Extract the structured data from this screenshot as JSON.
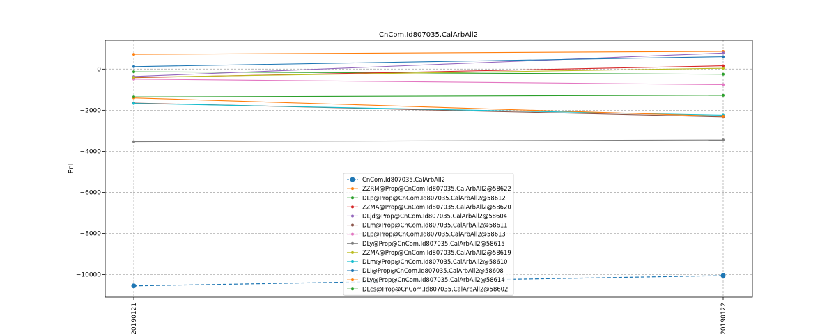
{
  "chart_data": {
    "type": "line",
    "title": "CnCom.Id807035.CalArbAll2",
    "xlabel": "",
    "ylabel": "Pnl",
    "x": [
      "20190121",
      "20190122"
    ],
    "ylim": [
      -11100,
      1400
    ],
    "yticks": [
      0,
      -2000,
      -4000,
      -6000,
      -8000,
      -10000
    ],
    "grid": true,
    "legend_position": "lower-center",
    "series": [
      {
        "name": "CnCom.Id807035.CalArbAll2",
        "values": [
          -10550,
          -10050
        ],
        "color": "#1f77b4",
        "style": "dashed",
        "marker": "large"
      },
      {
        "name": "ZZRM@Prop@CnCom.Id807035.CalArbAll2@58622",
        "values": [
          720,
          860
        ],
        "color": "#ff7f0e",
        "style": "solid",
        "marker": "small"
      },
      {
        "name": "DLp@Prop@CnCom.Id807035.CalArbAll2@58612",
        "values": [
          -130,
          -250
        ],
        "color": "#2ca02c",
        "style": "solid",
        "marker": "small"
      },
      {
        "name": "ZZMA@Prop@CnCom.Id807035.CalArbAll2@58620",
        "values": [
          -420,
          160
        ],
        "color": "#d62728",
        "style": "solid",
        "marker": "small"
      },
      {
        "name": "DLjd@Prop@CnCom.Id807035.CalArbAll2@58604",
        "values": [
          -360,
          780
        ],
        "color": "#9467bd",
        "style": "solid",
        "marker": "small"
      },
      {
        "name": "DLm@Prop@CnCom.Id807035.CalArbAll2@58611",
        "values": [
          -1650,
          -2320
        ],
        "color": "#8c564b",
        "style": "solid",
        "marker": "small"
      },
      {
        "name": "DLp@Prop@CnCom.Id807035.CalArbAll2@58613",
        "values": [
          -490,
          -750
        ],
        "color": "#e377c2",
        "style": "solid",
        "marker": "small"
      },
      {
        "name": "DLy@Prop@CnCom.Id807035.CalArbAll2@58615",
        "values": [
          -3530,
          -3450
        ],
        "color": "#7f7f7f",
        "style": "solid",
        "marker": "small"
      },
      {
        "name": "ZZMA@Prop@CnCom.Id807035.CalArbAll2@58619",
        "values": [
          -400,
          40
        ],
        "color": "#bcbd22",
        "style": "solid",
        "marker": "small"
      },
      {
        "name": "DLm@Prop@CnCom.Id807035.CalArbAll2@58610",
        "values": [
          -1670,
          -2240
        ],
        "color": "#17becf",
        "style": "solid",
        "marker": "small"
      },
      {
        "name": "DLl@Prop@CnCom.Id807035.CalArbAll2@58608",
        "values": [
          120,
          600
        ],
        "color": "#1f77b4",
        "style": "solid",
        "marker": "small"
      },
      {
        "name": "DLy@Prop@CnCom.Id807035.CalArbAll2@58614",
        "values": [
          -1400,
          -2290
        ],
        "color": "#ff7f0e",
        "style": "solid",
        "marker": "small"
      },
      {
        "name": "DLcs@Prop@CnCom.Id807035.CalArbAll2@58602",
        "values": [
          -1350,
          -1270
        ],
        "color": "#2ca02c",
        "style": "solid",
        "marker": "small"
      }
    ]
  }
}
